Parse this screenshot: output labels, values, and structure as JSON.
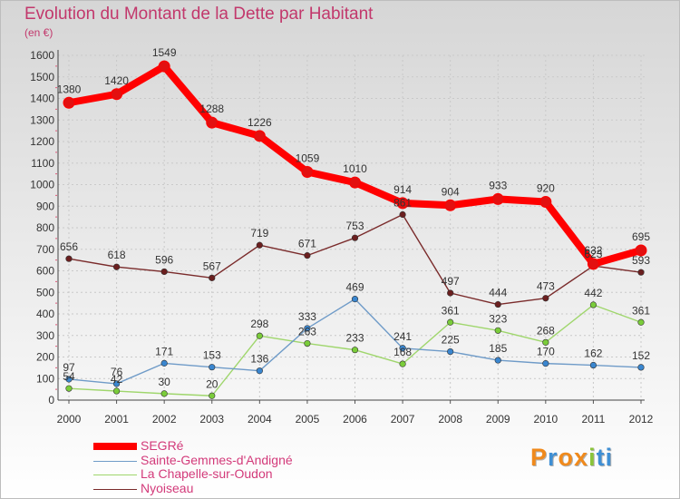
{
  "title": "Evolution du Montant de la Dette par Habitant",
  "unit": "(en €)",
  "brand": {
    "letters": [
      "P",
      "r",
      "o",
      "x",
      "i",
      "t",
      "i"
    ],
    "colors": [
      "#f08a1c",
      "#3f8fd4",
      "#f08a1c",
      "#f08a1c",
      "#8ac43a",
      "#3f8fd4",
      "#3f8fd4"
    ]
  },
  "chart_data": {
    "type": "line",
    "title": "Evolution du Montant de la Dette par Habitant",
    "ylabel": "(en €)",
    "xlabel": "",
    "x": [
      "2000",
      "2001",
      "2002",
      "2003",
      "2004",
      "2005",
      "2006",
      "2007",
      "2008",
      "2009",
      "2010",
      "2011",
      "2012"
    ],
    "ylim": [
      0,
      1600
    ],
    "yticks": [
      0,
      100,
      200,
      300,
      400,
      500,
      600,
      700,
      800,
      900,
      1000,
      1100,
      1200,
      1300,
      1400,
      1500,
      1600
    ],
    "grid": true,
    "legend": "bottom-left",
    "series": [
      {
        "name": "SEGRé",
        "color": "#ff0000",
        "markerColor": "#e31010",
        "values": [
          1380,
          1420,
          1549,
          1288,
          1226,
          1059,
          1010,
          914,
          904,
          933,
          920,
          632,
          695
        ]
      },
      {
        "name": "Sainte-Gemmes-d'Andigné",
        "color": "#6f9bc8",
        "markerColor": "#3a86cf",
        "values": [
          97,
          76,
          171,
          153,
          136,
          333,
          469,
          241,
          225,
          185,
          170,
          162,
          152
        ]
      },
      {
        "name": "La Chapelle-sur-Oudon",
        "color": "#9fd66c",
        "markerColor": "#7acc3a",
        "values": [
          54,
          42,
          30,
          20,
          298,
          263,
          233,
          168,
          361,
          323,
          268,
          442,
          361
        ]
      },
      {
        "name": "Nyoiseau",
        "color": "#7a2b2b",
        "markerColor": "#6b1f1f",
        "values": [
          656,
          618,
          596,
          567,
          719,
          671,
          753,
          861,
          497,
          444,
          473,
          623,
          593
        ]
      }
    ]
  }
}
